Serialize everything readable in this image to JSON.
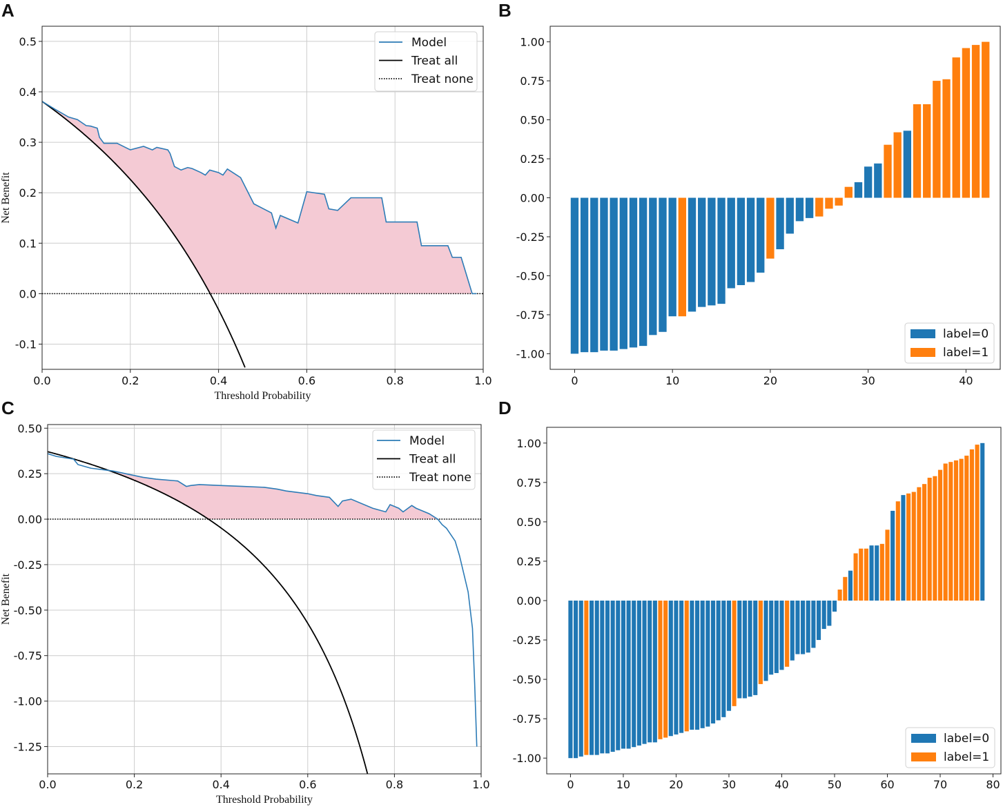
{
  "colors": {
    "model": "#2c7bb6",
    "treat_all": "#000000",
    "fill": "#f4cad4",
    "label0": "#1f77b4",
    "label1": "#ff7f0e",
    "grid": "#cccccc"
  },
  "chart_data": [
    {
      "id": "A",
      "letter": "A",
      "type": "line",
      "title": "",
      "xlabel": "Threshold Probability",
      "ylabel": "Net Benefit",
      "xlim": [
        0,
        1.0
      ],
      "ylim": [
        -0.15,
        0.53
      ],
      "xticks": [
        0.0,
        0.2,
        0.4,
        0.6,
        0.8,
        1.0
      ],
      "xtick_labels": [
        "0.0",
        "0.2",
        "0.4",
        "0.6",
        "0.8",
        "1.0"
      ],
      "yticks": [
        -0.1,
        0.0,
        0.1,
        0.2,
        0.3,
        0.4,
        0.5
      ],
      "ytick_labels": [
        "-0.1",
        "0.0",
        "0.1",
        "0.2",
        "0.3",
        "0.4",
        "0.5"
      ],
      "grid": true,
      "legend": [
        "Model",
        "Treat all",
        "Treat none"
      ],
      "legend_position": "top-right",
      "prevalence": 0.381,
      "model": {
        "x": [
          0.0,
          0.03,
          0.06,
          0.08,
          0.1,
          0.11,
          0.125,
          0.13,
          0.14,
          0.17,
          0.2,
          0.23,
          0.25,
          0.26,
          0.285,
          0.29,
          0.3,
          0.315,
          0.33,
          0.34,
          0.36,
          0.37,
          0.38,
          0.4,
          0.41,
          0.42,
          0.45,
          0.48,
          0.52,
          0.53,
          0.54,
          0.58,
          0.6,
          0.64,
          0.65,
          0.67,
          0.7,
          0.75,
          0.77,
          0.78,
          0.85,
          0.86,
          0.92,
          0.93,
          0.95,
          0.975,
          0.985
        ],
        "y": [
          0.381,
          0.365,
          0.35,
          0.345,
          0.333,
          0.332,
          0.328,
          0.31,
          0.298,
          0.298,
          0.285,
          0.292,
          0.285,
          0.29,
          0.285,
          0.278,
          0.252,
          0.245,
          0.25,
          0.248,
          0.24,
          0.235,
          0.245,
          0.24,
          0.235,
          0.247,
          0.23,
          0.178,
          0.16,
          0.13,
          0.155,
          0.14,
          0.202,
          0.197,
          0.168,
          0.165,
          0.19,
          0.19,
          0.19,
          0.142,
          0.142,
          0.095,
          0.095,
          0.072,
          0.072,
          0.0,
          0.0
        ]
      },
      "treat_all": {
        "x_end": 0.46
      },
      "treat_none": {
        "y": 0.0
      }
    },
    {
      "id": "B",
      "letter": "B",
      "type": "bar",
      "title": "",
      "xlabel": "",
      "ylabel": "",
      "xlim": [
        -2.5,
        43.5
      ],
      "ylim": [
        -1.1,
        1.1
      ],
      "xticks": [
        0,
        10,
        20,
        30,
        40
      ],
      "xtick_labels": [
        "0",
        "10",
        "20",
        "30",
        "40"
      ],
      "yticks": [
        -1.0,
        -0.75,
        -0.5,
        -0.25,
        0.0,
        0.25,
        0.5,
        0.75,
        1.0
      ],
      "ytick_labels": [
        "-1.00",
        "-0.75",
        "-0.50",
        "-0.25",
        "0.00",
        "0.25",
        "0.50",
        "0.75",
        "1.00"
      ],
      "grid": false,
      "legend": [
        "label=0",
        "label=1"
      ],
      "legend_position": "bottom-right",
      "values": [
        -1.0,
        -0.99,
        -0.99,
        -0.98,
        -0.98,
        -0.97,
        -0.96,
        -0.95,
        -0.88,
        -0.86,
        -0.76,
        -0.76,
        -0.73,
        -0.7,
        -0.69,
        -0.68,
        -0.58,
        -0.56,
        -0.54,
        -0.48,
        -0.39,
        -0.33,
        -0.23,
        -0.15,
        -0.13,
        -0.12,
        -0.07,
        -0.05,
        0.07,
        0.1,
        0.2,
        0.22,
        0.34,
        0.42,
        0.43,
        0.6,
        0.6,
        0.75,
        0.76,
        0.9,
        0.96,
        0.98,
        1.0
      ],
      "labels": [
        0,
        0,
        0,
        0,
        0,
        0,
        0,
        0,
        0,
        0,
        0,
        1,
        0,
        0,
        0,
        0,
        0,
        0,
        0,
        0,
        1,
        0,
        0,
        0,
        0,
        1,
        1,
        1,
        1,
        0,
        0,
        0,
        1,
        1,
        0,
        1,
        1,
        1,
        1,
        1,
        1,
        1,
        1
      ]
    },
    {
      "id": "C",
      "letter": "C",
      "type": "line",
      "title": "",
      "xlabel": "Threshold Probability",
      "ylabel": "Net Benefit",
      "xlim": [
        0,
        1.0
      ],
      "ylim": [
        -1.4,
        0.52
      ],
      "xticks": [
        0.0,
        0.2,
        0.4,
        0.6,
        0.8,
        1.0
      ],
      "xtick_labels": [
        "0.0",
        "0.2",
        "0.4",
        "0.6",
        "0.8",
        "1.0"
      ],
      "yticks": [
        -1.25,
        -1.0,
        -0.75,
        -0.5,
        -0.25,
        0.0,
        0.25,
        0.5
      ],
      "ytick_labels": [
        "-1.25",
        "-1.00",
        "-0.75",
        "-0.50",
        "-0.25",
        "0.00",
        "0.25",
        "0.50"
      ],
      "grid": true,
      "legend": [
        "Model",
        "Treat all",
        "Treat none"
      ],
      "legend_position": "top-right",
      "prevalence": 0.371,
      "model": {
        "x": [
          0.0,
          0.02,
          0.06,
          0.07,
          0.1,
          0.15,
          0.2,
          0.22,
          0.25,
          0.3,
          0.32,
          0.33,
          0.35,
          0.4,
          0.45,
          0.5,
          0.53,
          0.55,
          0.6,
          0.62,
          0.65,
          0.67,
          0.68,
          0.7,
          0.75,
          0.78,
          0.79,
          0.81,
          0.82,
          0.84,
          0.85,
          0.87,
          0.88,
          0.9,
          0.91,
          0.92,
          0.94,
          0.95,
          0.96,
          0.97,
          0.98,
          0.985,
          0.99
        ],
        "y": [
          0.36,
          0.345,
          0.33,
          0.3,
          0.28,
          0.265,
          0.24,
          0.23,
          0.22,
          0.21,
          0.18,
          0.185,
          0.19,
          0.185,
          0.18,
          0.175,
          0.165,
          0.155,
          0.14,
          0.13,
          0.12,
          0.07,
          0.1,
          0.11,
          0.06,
          0.04,
          0.08,
          0.06,
          0.04,
          0.075,
          0.06,
          0.04,
          0.03,
          0.0,
          -0.03,
          -0.05,
          -0.12,
          -0.2,
          -0.3,
          -0.4,
          -0.6,
          -0.9,
          -1.25
        ]
      },
      "treat_all": {
        "x_end": 0.74
      },
      "treat_none": {
        "y": 0.0
      }
    },
    {
      "id": "D",
      "letter": "D",
      "type": "bar",
      "title": "",
      "xlabel": "",
      "ylabel": "",
      "xlim": [
        -4.5,
        81.5
      ],
      "ylim": [
        -1.1,
        1.1
      ],
      "xticks": [
        0,
        10,
        20,
        30,
        40,
        50,
        60,
        70,
        80
      ],
      "xtick_labels": [
        "0",
        "10",
        "20",
        "30",
        "40",
        "50",
        "60",
        "70",
        "80"
      ],
      "yticks": [
        -1.0,
        -0.75,
        -0.5,
        -0.25,
        0.0,
        0.25,
        0.5,
        0.75,
        1.0
      ],
      "ytick_labels": [
        "-1.00",
        "-0.75",
        "-0.50",
        "-0.25",
        "0.00",
        "0.25",
        "0.50",
        "0.75",
        "1.00"
      ],
      "grid": false,
      "legend": [
        "label=0",
        "label=1"
      ],
      "legend_position": "bottom-right",
      "values": [
        -1.0,
        -1.0,
        -0.99,
        -0.98,
        -0.98,
        -0.98,
        -0.97,
        -0.97,
        -0.96,
        -0.95,
        -0.94,
        -0.94,
        -0.93,
        -0.92,
        -0.91,
        -0.9,
        -0.9,
        -0.88,
        -0.87,
        -0.86,
        -0.85,
        -0.84,
        -0.83,
        -0.82,
        -0.82,
        -0.81,
        -0.8,
        -0.78,
        -0.76,
        -0.74,
        -0.7,
        -0.67,
        -0.62,
        -0.62,
        -0.61,
        -0.6,
        -0.53,
        -0.51,
        -0.47,
        -0.46,
        -0.44,
        -0.42,
        -0.38,
        -0.34,
        -0.34,
        -0.33,
        -0.3,
        -0.25,
        -0.18,
        -0.16,
        -0.07,
        0.07,
        0.15,
        0.19,
        0.3,
        0.33,
        0.33,
        0.35,
        0.35,
        0.36,
        0.45,
        0.57,
        0.63,
        0.67,
        0.68,
        0.69,
        0.72,
        0.74,
        0.78,
        0.79,
        0.83,
        0.87,
        0.88,
        0.89,
        0.9,
        0.92,
        0.96,
        0.99,
        1.0
      ],
      "labels": [
        0,
        0,
        0,
        1,
        0,
        0,
        0,
        0,
        0,
        0,
        0,
        0,
        0,
        0,
        0,
        0,
        0,
        1,
        1,
        0,
        0,
        0,
        1,
        0,
        0,
        0,
        0,
        0,
        0,
        0,
        0,
        1,
        0,
        0,
        0,
        0,
        1,
        0,
        0,
        0,
        0,
        1,
        0,
        0,
        0,
        0,
        0,
        0,
        0,
        0,
        0,
        1,
        1,
        0,
        1,
        1,
        1,
        0,
        0,
        1,
        1,
        0,
        1,
        0,
        1,
        1,
        1,
        1,
        1,
        1,
        1,
        1,
        1,
        1,
        1,
        1,
        1,
        1,
        0
      ]
    }
  ]
}
